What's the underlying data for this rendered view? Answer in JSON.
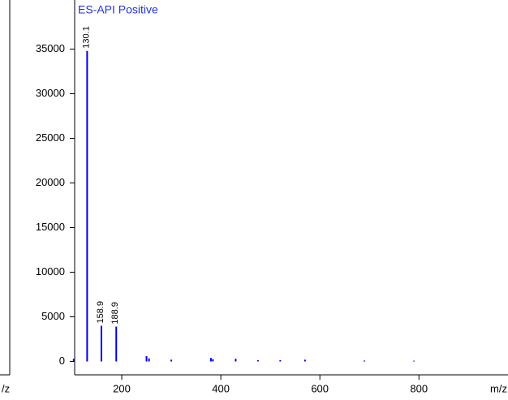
{
  "chart_data": {
    "type": "spectrum",
    "title": "ES-API Positive",
    "x_label": "m/z",
    "left_label": "/z",
    "color": "#0000ee",
    "title_color": "#2233dd",
    "x": [
      130.1,
      158.9,
      188.9,
      103,
      250,
      255,
      300,
      380,
      384,
      430,
      475,
      520,
      570,
      690,
      790
    ],
    "values": [
      34800,
      4000,
      3900,
      300,
      600,
      350,
      200,
      400,
      250,
      300,
      150,
      150,
      200,
      100,
      80
    ],
    "x_labels": [
      "130.1",
      "158.9",
      "188.9",
      null,
      null,
      null,
      null,
      null,
      null,
      null,
      null,
      null,
      null,
      null,
      null
    ],
    "xlim": [
      100,
      970
    ],
    "xticks": [
      200,
      400,
      600,
      800
    ],
    "ylim": [
      -1500,
      40500
    ],
    "yticks": [
      0,
      5000,
      10000,
      15000,
      20000,
      25000,
      30000,
      35000
    ]
  }
}
